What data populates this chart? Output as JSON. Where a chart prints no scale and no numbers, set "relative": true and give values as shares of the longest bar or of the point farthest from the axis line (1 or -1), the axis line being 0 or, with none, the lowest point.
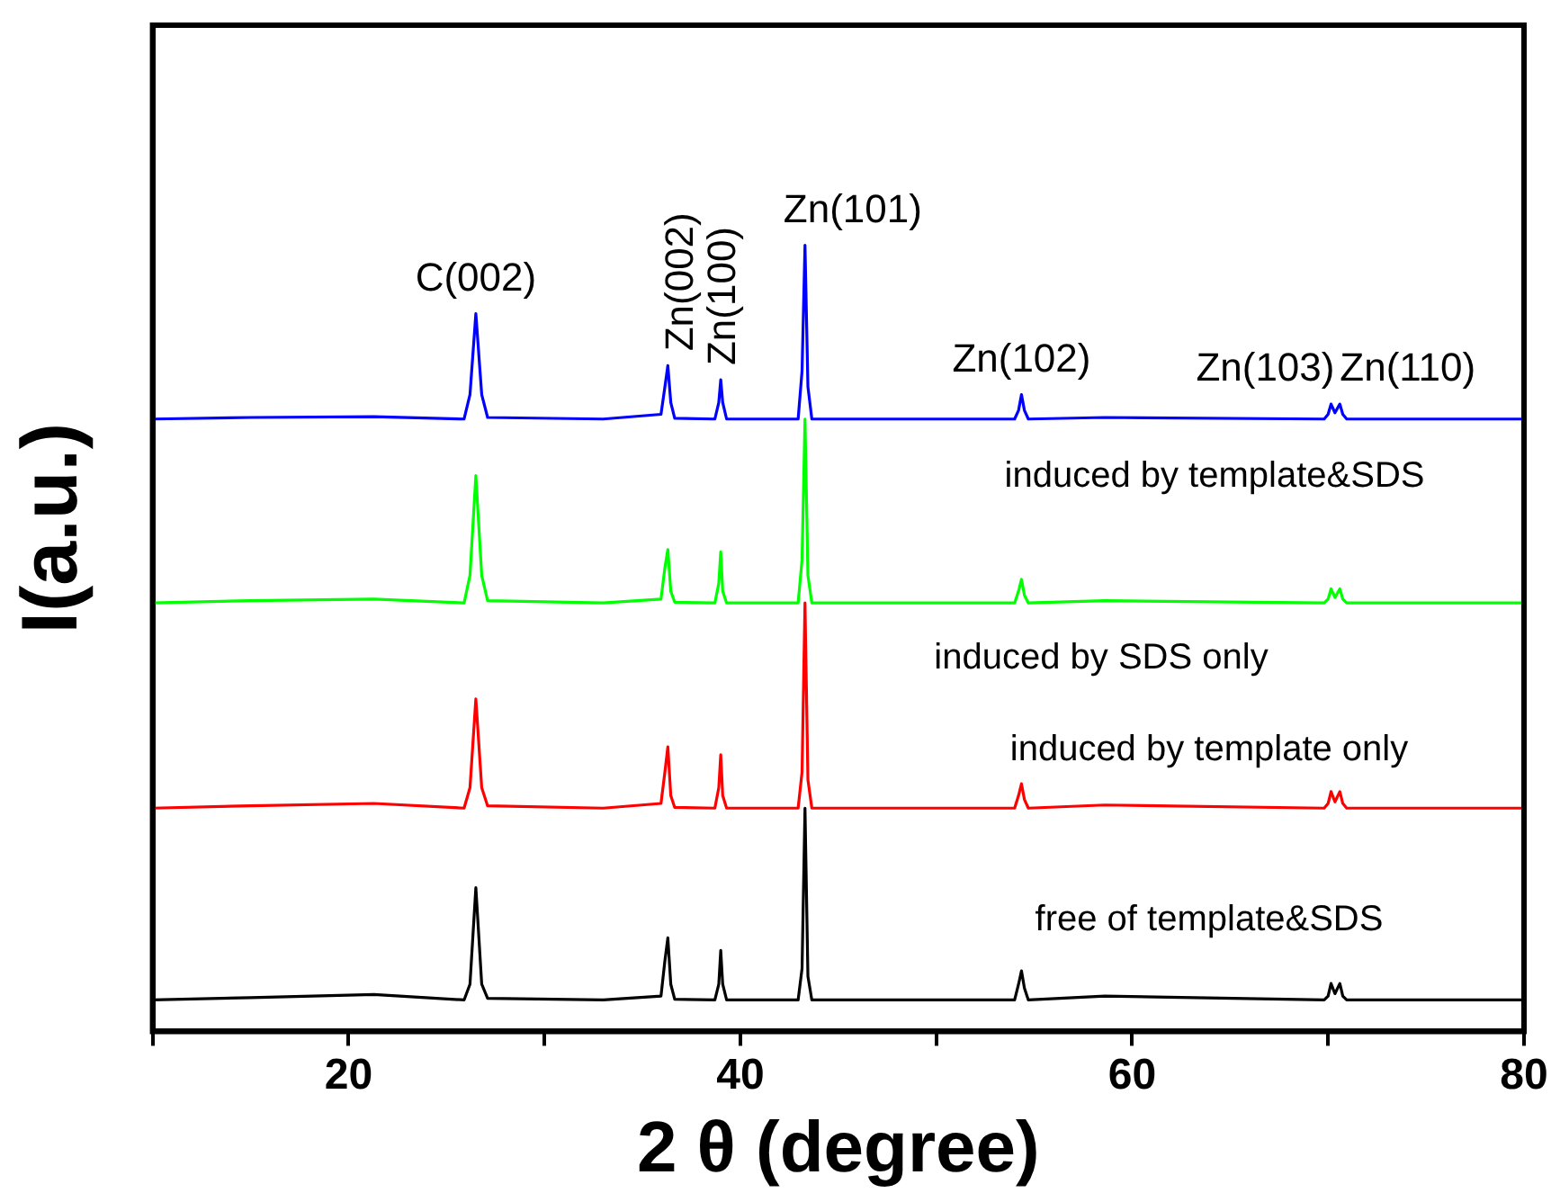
{
  "chart_data": {
    "type": "line",
    "relative": true,
    "xlabel": "2 θ (degree)",
    "ylabel": "I(a.u.)",
    "xlim": [
      10,
      80
    ],
    "xticks": [
      {
        "value": 10,
        "label": null
      },
      20,
      {
        "value": 30,
        "label": null
      },
      40,
      {
        "value": 50,
        "label": null
      },
      60,
      {
        "value": 70,
        "label": null
      },
      80
    ],
    "x": [
      10,
      15,
      21.3,
      25.9,
      26.2,
      26.5,
      26.8,
      27.1,
      33,
      35.95,
      36.15,
      36.3,
      36.45,
      36.65,
      38.7,
      38.9,
      39.0,
      39.1,
      39.3,
      42.95,
      43.15,
      43.3,
      43.45,
      43.65,
      50,
      54.0,
      54.2,
      54.35,
      54.5,
      54.7,
      58.6,
      69.8,
      70.0,
      70.15,
      70.35,
      70.6,
      70.75,
      70.95,
      80
    ],
    "series": [
      {
        "name": "induced by template&SDS",
        "color": "#0000ff",
        "values": [
          0.779,
          0.781,
          0.782,
          0.779,
          0.81,
          0.913,
          0.81,
          0.781,
          0.779,
          0.785,
          0.82,
          0.847,
          0.8,
          0.78,
          0.779,
          0.8,
          0.829,
          0.8,
          0.779,
          0.779,
          0.84,
          1,
          0.82,
          0.779,
          0.779,
          0.779,
          0.79,
          0.81,
          0.79,
          0.779,
          0.781,
          0.779,
          0.785,
          0.798,
          0.787,
          0.798,
          0.785,
          0.779,
          0.779
        ]
      },
      {
        "name": "induced by SDS only",
        "color": "#00ff00",
        "values": [
          0.545,
          0.548,
          0.55,
          0.545,
          0.58,
          0.707,
          0.58,
          0.548,
          0.545,
          0.55,
          0.59,
          0.613,
          0.56,
          0.546,
          0.545,
          0.57,
          0.61,
          0.56,
          0.545,
          0.545,
          0.6,
          0.779,
          0.58,
          0.545,
          0.545,
          0.545,
          0.56,
          0.575,
          0.555,
          0.545,
          0.548,
          0.545,
          0.55,
          0.563,
          0.552,
          0.563,
          0.55,
          0.545,
          0.545
        ]
      },
      {
        "name": "induced by template only",
        "color": "#ff0000",
        "values": [
          0.284,
          0.287,
          0.29,
          0.284,
          0.31,
          0.423,
          0.31,
          0.287,
          0.284,
          0.29,
          0.33,
          0.362,
          0.3,
          0.285,
          0.284,
          0.31,
          0.352,
          0.3,
          0.284,
          0.284,
          0.33,
          0.545,
          0.32,
          0.284,
          0.284,
          0.284,
          0.3,
          0.315,
          0.295,
          0.284,
          0.288,
          0.284,
          0.29,
          0.305,
          0.292,
          0.305,
          0.29,
          0.284,
          0.284
        ]
      },
      {
        "name": "free of template&SDS",
        "color": "#000000",
        "values": [
          0.04,
          0.043,
          0.047,
          0.04,
          0.06,
          0.183,
          0.06,
          0.042,
          0.04,
          0.045,
          0.09,
          0.119,
          0.06,
          0.041,
          0.04,
          0.06,
          0.103,
          0.06,
          0.04,
          0.04,
          0.08,
          0.284,
          0.07,
          0.04,
          0.04,
          0.04,
          0.06,
          0.077,
          0.055,
          0.04,
          0.045,
          0.04,
          0.045,
          0.061,
          0.048,
          0.061,
          0.045,
          0.04,
          0.04
        ]
      }
    ],
    "annotations": [
      {
        "text": "C(002)",
        "x": 26.5,
        "y": 0.913
      },
      {
        "text": "Zn(002)",
        "x": 36.3,
        "y": 0.847
      },
      {
        "text": "Zn(100)",
        "x": 39.0,
        "y": 0.829
      },
      {
        "text": "Zn(101)",
        "x": 43.3,
        "y": 1
      },
      {
        "text": "Zn(102)",
        "x": 54.35,
        "y": 0.81
      },
      {
        "text": "Zn(103)",
        "x": 70.15,
        "y": 0.798
      },
      {
        "text": "Zn(110)",
        "x": 70.6,
        "y": 0.798
      }
    ]
  }
}
